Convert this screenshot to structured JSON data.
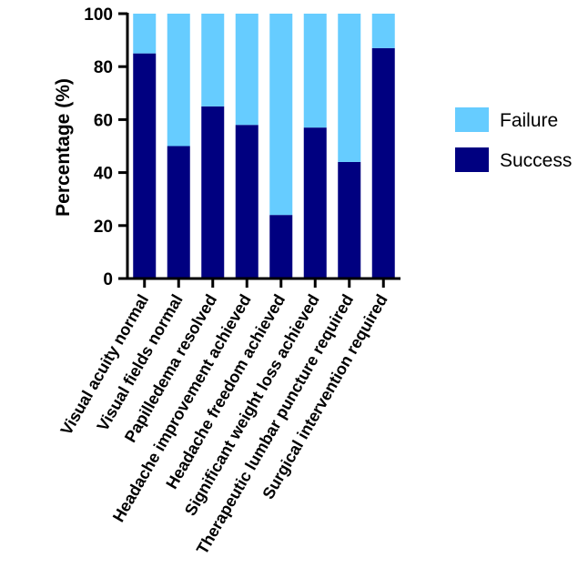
{
  "chart_data": {
    "type": "bar",
    "stacked": true,
    "title": "",
    "xlabel": "",
    "ylabel": "Percentage (%)",
    "ylim": [
      0,
      100
    ],
    "yticks": [
      "0",
      "20",
      "40",
      "60",
      "80",
      "100"
    ],
    "grid": false,
    "legend_position": "right",
    "categories": [
      "Visual acuity normal",
      "Visual fields normal",
      "Papilledema resolved",
      "Headache improvement achieved",
      "Headache freedom achieved",
      "Significant weight loss achieved",
      "Therapeutic lumbar puncture required",
      "Surgical intervention required"
    ],
    "series": [
      {
        "name": "Success",
        "color": "#000080",
        "values": [
          85,
          50,
          65,
          58,
          24,
          57,
          44,
          87
        ]
      },
      {
        "name": "Failure",
        "color": "#66CCFF",
        "values": [
          15,
          50,
          35,
          42,
          76,
          43,
          56,
          13
        ]
      }
    ],
    "legend": [
      {
        "name": "Failure",
        "color": "#66CCFF"
      },
      {
        "name": "Success",
        "color": "#000080"
      }
    ]
  }
}
